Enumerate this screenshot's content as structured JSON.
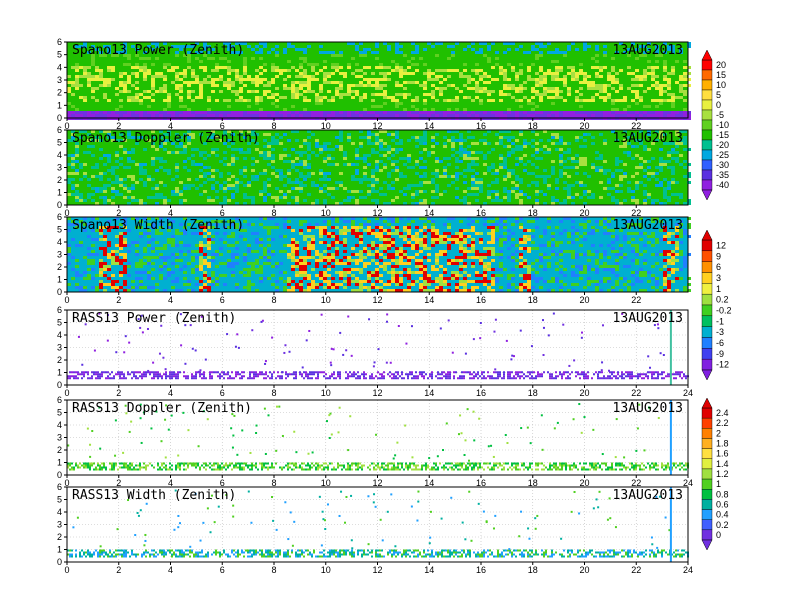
{
  "chart_data": [
    {
      "type": "heatmap",
      "title": "Spano13 Power (Zenith)",
      "date": "13AUG2013",
      "x_range": [
        0,
        24
      ],
      "y_range": [
        0,
        6
      ],
      "x_ticks": [
        0,
        2,
        4,
        6,
        8,
        10,
        12,
        14,
        16,
        18,
        20,
        22
      ],
      "y_ticks": [
        0,
        1,
        2,
        3,
        4,
        5,
        6
      ],
      "grid": false,
      "description_values": {
        "surface_band_value": -38,
        "mid_band_value": 8,
        "background_value": -12
      },
      "colorbar": "top"
    },
    {
      "type": "heatmap",
      "title": "Spano13 Doppler (Zenith)",
      "date": "13AUG2013",
      "x_range": [
        0,
        24
      ],
      "y_range": [
        0,
        6
      ],
      "x_ticks": [
        0,
        2,
        4,
        6,
        8,
        10,
        12,
        14,
        16,
        18,
        20,
        22
      ],
      "y_ticks": [
        0,
        1,
        2,
        3,
        4,
        5,
        6
      ],
      "grid": false,
      "colorbar": "top"
    },
    {
      "type": "heatmap",
      "title": "Spano13 Width (Zenith)",
      "date": "13AUG2013",
      "x_range": [
        0,
        24
      ],
      "y_range": [
        0,
        6
      ],
      "x_ticks": [
        0,
        2,
        4,
        6,
        8,
        10,
        12,
        14,
        16,
        18,
        20,
        22
      ],
      "y_ticks": [
        0,
        1,
        2,
        3,
        4,
        5,
        6
      ],
      "grid": false,
      "colorbar": "middle"
    },
    {
      "type": "scatter",
      "title": "RASS13 Power (Zenith)",
      "date": "13AUG2013",
      "x_range": [
        0,
        24
      ],
      "y_range": [
        0,
        6
      ],
      "x_ticks": [
        0,
        2,
        4,
        6,
        8,
        10,
        12,
        14,
        16,
        18,
        20,
        22,
        24
      ],
      "y_ticks": [
        0,
        1,
        2,
        3,
        4,
        5,
        6
      ],
      "grid": true,
      "band_height": [
        0.6,
        1.1
      ],
      "colorbar": "middle"
    },
    {
      "type": "scatter",
      "title": "RASS13 Doppler (Zenith)",
      "date": "13AUG2013",
      "x_range": [
        0,
        24
      ],
      "y_range": [
        0,
        6
      ],
      "x_ticks": [
        0,
        2,
        4,
        6,
        8,
        10,
        12,
        14,
        16,
        18,
        20,
        22,
        24
      ],
      "y_ticks": [
        0,
        1,
        2,
        3,
        4,
        5,
        6
      ],
      "grid": true,
      "band_height": [
        0.5,
        1.0
      ],
      "colorbar": "bottom"
    },
    {
      "type": "scatter",
      "title": "RASS13 Width (Zenith)",
      "date": "13AUG2013",
      "x_range": [
        0,
        24
      ],
      "y_range": [
        0,
        6
      ],
      "x_ticks": [
        0,
        2,
        4,
        6,
        8,
        10,
        12,
        14,
        16,
        18,
        20,
        22,
        24
      ],
      "y_ticks": [
        0,
        1,
        2,
        3,
        4,
        5,
        6
      ],
      "grid": true,
      "band_height": [
        0.5,
        1.0
      ],
      "colorbar": "bottom"
    }
  ],
  "colorbars": [
    {
      "labels": [
        "20",
        "15",
        "10",
        "5",
        "0",
        "-5",
        "-10",
        "-15",
        "-20",
        "-25",
        "-30",
        "-35",
        "-40"
      ],
      "colors": [
        "#ff0000",
        "#ff6a00",
        "#ffb000",
        "#ffdf40",
        "#e8f040",
        "#a8e040",
        "#60d020",
        "#20c000",
        "#00c090",
        "#00a8e0",
        "#3060ff",
        "#5a30e0",
        "#9020e0"
      ]
    },
    {
      "labels": [
        "12",
        "9",
        "6",
        "3",
        "1",
        "0.2",
        "-0.2",
        "-1",
        "-3",
        "-6",
        "-9",
        "-12"
      ],
      "colors": [
        "#e00000",
        "#ff5000",
        "#ff9000",
        "#ffd020",
        "#f0f040",
        "#a0e040",
        "#40d020",
        "#00c060",
        "#00b0d0",
        "#2080ff",
        "#4040f0",
        "#8020e0"
      ]
    },
    {
      "labels": [
        "2.4",
        "2.2",
        "2",
        "1.8",
        "1.6",
        "1.4",
        "1.2",
        "1",
        "0.8",
        "0.6",
        "0.4",
        "0.2",
        "0"
      ],
      "colors": [
        "#e00000",
        "#ff4000",
        "#ff8000",
        "#ffb020",
        "#ffe040",
        "#e0f040",
        "#a0e040",
        "#50d020",
        "#00c040",
        "#00b0a0",
        "#20a0ff",
        "#4060ff",
        "#7030e0"
      ]
    }
  ]
}
